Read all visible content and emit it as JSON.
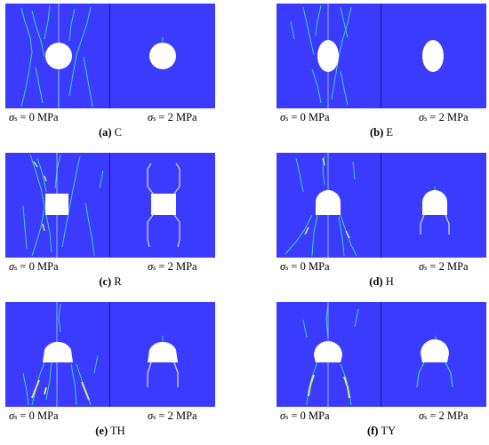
{
  "panels": [
    {
      "id": "a",
      "letter": "(a)",
      "name": "C",
      "left_label": "= 0 MPa",
      "right_label": "= 2 MPa",
      "shape": "circle"
    },
    {
      "id": "b",
      "letter": "(b)",
      "name": "E",
      "left_label": "= 0 MPa",
      "right_label": "= 2 MPa",
      "shape": "ellipse"
    },
    {
      "id": "c",
      "letter": "(c)",
      "name": "R",
      "left_label": "= 0 MPa",
      "right_label": "= 2 MPa",
      "shape": "rectangle"
    },
    {
      "id": "d",
      "letter": "(d)",
      "name": "H",
      "left_label": "= 0 MPa",
      "right_label": "= 2 MPa",
      "shape": "horseshoe"
    },
    {
      "id": "e",
      "letter": "(e)",
      "name": "TH",
      "left_label": "= 0 MPa",
      "right_label": "= 2 MPa",
      "shape": "three-centered-arch"
    },
    {
      "id": "f",
      "letter": "(f)",
      "name": "TY",
      "left_label": "= 0 MPa",
      "right_label": "= 2 MPa",
      "shape": "straight-wall-arch"
    }
  ],
  "symbol": "σ",
  "symbol_sub": "s",
  "colors": {
    "rock": "#3b3bff",
    "crack": "#36d6a8",
    "crack_highlight": "#d6e86a",
    "opening": "#ffffff"
  }
}
